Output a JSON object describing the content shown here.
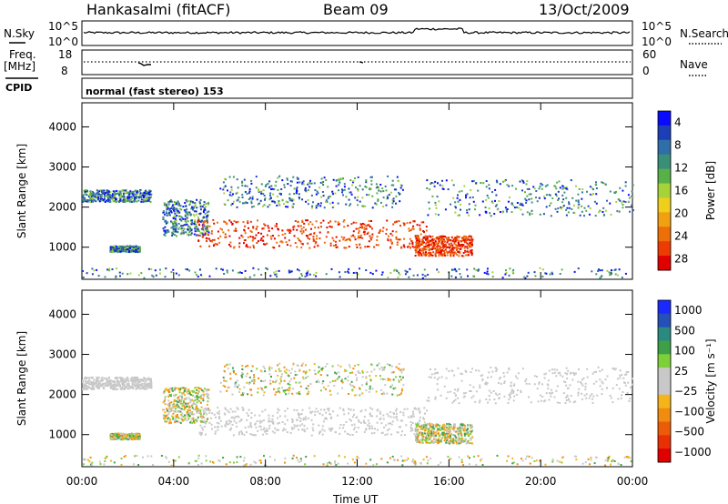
{
  "header": {
    "station": "Hankasalmi (fitACF)",
    "beam": "Beam 09",
    "date": "13/Oct/2009"
  },
  "nsky_panel": {
    "left_label": "N.Sky",
    "left_top_tick": "10^5",
    "left_bottom_tick": "10^0",
    "right_top_tick": "10^5",
    "right_bottom_tick": "10^0",
    "right_label": "N.Search"
  },
  "freq_panel": {
    "left_label_line1": "Freq.",
    "left_label_line2": "[MHz]",
    "left_top_tick": "18",
    "left_bottom_tick": "8",
    "right_top_tick": "60",
    "right_bottom_tick": "0",
    "right_label": "Nave"
  },
  "cpid_panel": {
    "label": "CPID",
    "mode_text": "normal (fast stereo) 153"
  },
  "chart_data": [
    {
      "type": "heatmap",
      "name": "power",
      "ylabel": "Slant Range [km]",
      "ylim": [
        200,
        4600
      ],
      "yticks": [
        1000,
        2000,
        3000,
        4000
      ],
      "xlim": [
        0,
        24
      ],
      "colorbar": {
        "label": "Power [dB]",
        "range": [
          0,
          30
        ],
        "ticks": [
          "4",
          "8",
          "12",
          "16",
          "20",
          "24",
          "28"
        ],
        "colors": [
          "#0a0aff",
          "#1c3fb8",
          "#2f6fa8",
          "#3a8f78",
          "#58b048",
          "#a6d23a",
          "#f0cf1c",
          "#f0a010",
          "#ee6e08",
          "#ec3c04",
          "#e00000"
        ]
      }
    },
    {
      "type": "heatmap",
      "name": "velocity",
      "ylabel": "Slant Range [km]",
      "ylim": [
        200,
        4600
      ],
      "yticks": [
        1000,
        2000,
        3000,
        4000
      ],
      "xlim": [
        0,
        24
      ],
      "colorbar": {
        "label": "Velocity [m s⁻¹]",
        "ticks": [
          "1000",
          "500",
          "100",
          "25",
          "−25",
          "−100",
          "−500",
          "−1000"
        ],
        "colors": [
          "#1a2aff",
          "#2550b8",
          "#2a8a80",
          "#3da048",
          "#7ed03a",
          "#c8c8c8",
          "#c8c8c8",
          "#f4b41a",
          "#f08c10",
          "#ec5c08",
          "#e83004",
          "#e00000"
        ]
      }
    }
  ],
  "xaxis": {
    "label": "Time UT",
    "ticks": [
      "00:00",
      "04:00",
      "08:00",
      "12:00",
      "16:00",
      "20:00",
      "00:00"
    ]
  }
}
